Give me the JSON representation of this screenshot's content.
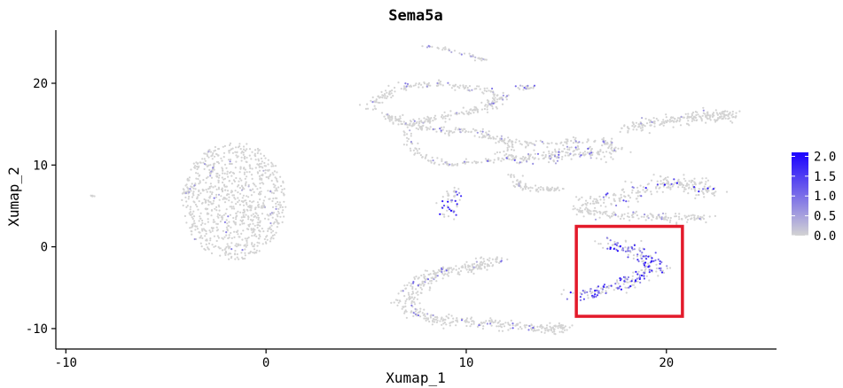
{
  "chart_data": {
    "type": "scatter",
    "title": "Sema5a",
    "xlabel": "Xumap_1",
    "ylabel": "Xumap_2",
    "xlim": [
      -10.5,
      25.5
    ],
    "ylim": [
      -12.5,
      26.5
    ],
    "x_ticks": [
      -10,
      0,
      10,
      20
    ],
    "x_tick_labels": [
      "-10",
      "0",
      "10",
      "20"
    ],
    "y_ticks": [
      -10,
      0,
      10,
      20
    ],
    "y_tick_labels": [
      "-10",
      "0",
      "10",
      "20"
    ],
    "grid": false,
    "colors": {
      "low": "#d3d3d3",
      "high": "#1a00ff",
      "highlight": "#e31a2a"
    },
    "colorbar": {
      "min": 0.0,
      "max": 2.1,
      "ticks": [
        0.0,
        0.5,
        1.0,
        1.5,
        2.0
      ],
      "tick_labels": [
        "0.0",
        "0.5",
        "1.0",
        "1.5",
        "2.0"
      ],
      "position": "right"
    },
    "clusters": [
      {
        "cx": -1.6,
        "cy": 5.6,
        "rx": 2.6,
        "ry": 7.2,
        "n": 900,
        "expr_frac": 0.03,
        "max_expr": 0.9,
        "shape": "ellipse"
      },
      {
        "path": [
          [
            5,
            17
          ],
          [
            6.5,
            19.5
          ],
          [
            9,
            20
          ],
          [
            12,
            18.5
          ],
          [
            11,
            17
          ],
          [
            9,
            16
          ],
          [
            7,
            15
          ],
          [
            6,
            16
          ]
        ],
        "n": 320,
        "width": 0.45,
        "expr_frac": 0.06,
        "max_expr": 1.0
      },
      {
        "path": [
          [
            8,
            24.5
          ],
          [
            9,
            24.2
          ],
          [
            10,
            23.5
          ],
          [
            11,
            22.8
          ]
        ],
        "n": 40,
        "width": 0.2,
        "expr_frac": 0.2,
        "max_expr": 0.8
      },
      {
        "path": [
          [
            12.5,
            19.5
          ],
          [
            13.5,
            19.5
          ]
        ],
        "n": 20,
        "width": 0.25,
        "expr_frac": 0.4,
        "max_expr": 1.2
      },
      {
        "path": [
          [
            7,
            15
          ],
          [
            8.5,
            14.2
          ],
          [
            10.5,
            14
          ],
          [
            11.5,
            13.2
          ],
          [
            12.5,
            12.5
          ],
          [
            15,
            12.8
          ],
          [
            17,
            13
          ],
          [
            17.5,
            11.5
          ]
        ],
        "n": 220,
        "width": 0.5,
        "expr_frac": 0.08,
        "max_expr": 1.0
      },
      {
        "path": [
          [
            7,
            14
          ],
          [
            7.5,
            11.5
          ],
          [
            9,
            10
          ],
          [
            11,
            10.5
          ],
          [
            13,
            11
          ]
        ],
        "n": 110,
        "width": 0.35,
        "expr_frac": 0.03,
        "max_expr": 0.8
      },
      {
        "path": [
          [
            12,
            11
          ],
          [
            14,
            11
          ],
          [
            15.5,
            11.8
          ],
          [
            17,
            11.3
          ]
        ],
        "n": 170,
        "width": 0.9,
        "expr_frac": 0.15,
        "max_expr": 1.3
      },
      {
        "path": [
          [
            12.3,
            9
          ],
          [
            12.6,
            7.5
          ],
          [
            13.5,
            7
          ],
          [
            14.8,
            7
          ]
        ],
        "n": 70,
        "width": 0.3,
        "expr_frac": 0.03,
        "max_expr": 0.6
      },
      {
        "path": [
          [
            18,
            14.5
          ],
          [
            20,
            15.5
          ],
          [
            22,
            16
          ],
          [
            23.2,
            16
          ]
        ],
        "n": 220,
        "width": 0.7,
        "expr_frac": 0.03,
        "max_expr": 0.7
      },
      {
        "path": [
          [
            15.5,
            5.2
          ],
          [
            18,
            6
          ],
          [
            19.8,
            8
          ],
          [
            21.5,
            7.5
          ],
          [
            22,
            6.5
          ]
        ],
        "n": 240,
        "width": 0.9,
        "expr_frac": 0.08,
        "max_expr": 2.0
      },
      {
        "path": [
          [
            15.5,
            4.5
          ],
          [
            17.5,
            3.8
          ],
          [
            20,
            3.6
          ],
          [
            22,
            3.5
          ]
        ],
        "n": 150,
        "width": 0.5,
        "expr_frac": 0.06,
        "max_expr": 1.0
      },
      {
        "path": [
          [
            9.5,
            6.8
          ],
          [
            9,
            3.8
          ]
        ],
        "n": 50,
        "width": 0.6,
        "expr_frac": 0.35,
        "max_expr": 2.1
      },
      {
        "path": [
          [
            17,
            0.5
          ],
          [
            18.5,
            -0.5
          ],
          [
            19.5,
            -2.5
          ],
          [
            18,
            -4.5
          ],
          [
            16.5,
            -5.5
          ],
          [
            15.5,
            -6
          ]
        ],
        "n": 260,
        "width": 0.7,
        "expr_frac": 0.55,
        "max_expr": 2.1
      },
      {
        "path": [
          [
            11.5,
            -1.5
          ],
          [
            10.5,
            -2.5
          ],
          [
            9,
            -2.8
          ],
          [
            7.5,
            -4.5
          ],
          [
            7,
            -7
          ],
          [
            8,
            -8.8
          ],
          [
            10,
            -9.2
          ],
          [
            12,
            -9.5
          ],
          [
            14,
            -10
          ],
          [
            15,
            -9.8
          ]
        ],
        "n": 480,
        "width": 0.6,
        "expr_frac": 0.05,
        "max_expr": 1.2
      },
      {
        "path": [
          [
            -8.8,
            6.3
          ],
          [
            -8.6,
            6.2
          ]
        ],
        "n": 6,
        "width": 0.06,
        "expr_frac": 0,
        "max_expr": 0
      }
    ],
    "annotations": [
      {
        "type": "rectangle",
        "x0": 15.5,
        "y0": -8.5,
        "x1": 20.8,
        "y1": 2.5,
        "color": "#e31a2a"
      }
    ]
  }
}
